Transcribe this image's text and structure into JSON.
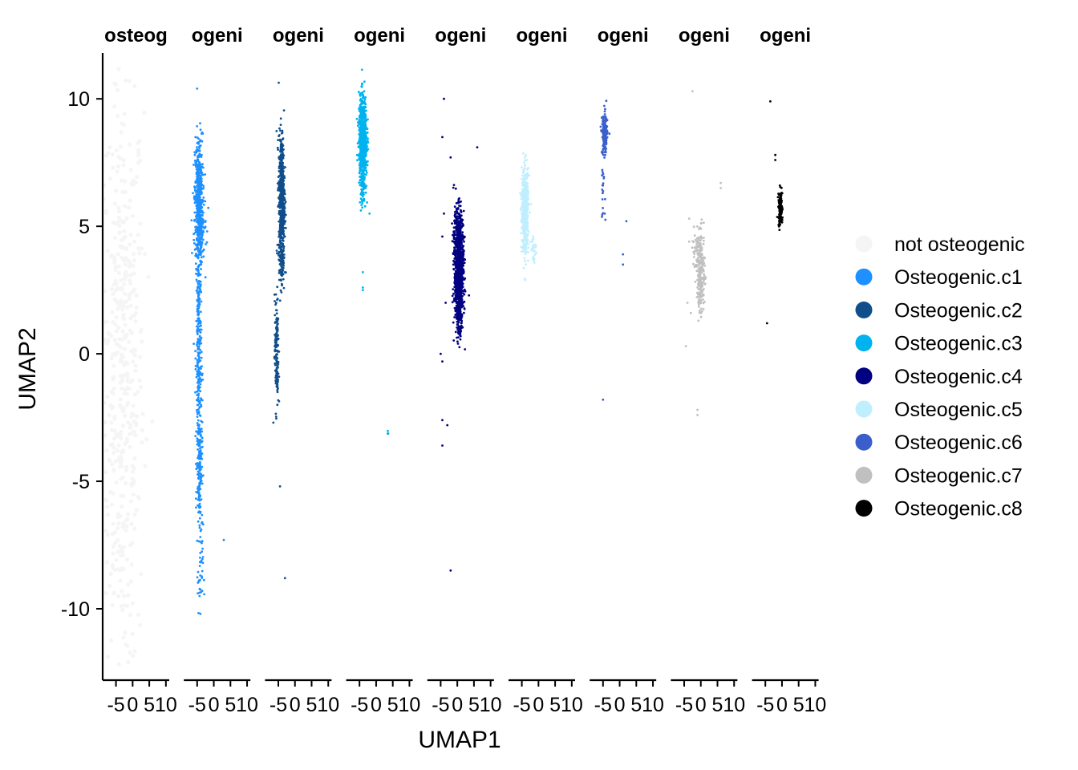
{
  "chart_data": {
    "type": "scatter",
    "title": "",
    "xlabel": "UMAP1",
    "ylabel": "UMAP2",
    "ylim": [
      -12.8,
      11.8
    ],
    "xlim": [
      -9,
      11
    ],
    "y_ticks": [
      10,
      5,
      0,
      -5,
      -10
    ],
    "x_ticks": [
      -5,
      0,
      5,
      10
    ],
    "x_tick_labels": [
      "-5",
      "0",
      "5",
      "10"
    ],
    "grid": false,
    "legend_position": "right",
    "panels": [
      {
        "strip_label": "osteog",
        "series": "not osteogenic"
      },
      {
        "strip_label": "ogeni",
        "series": "Osteogenic.c1"
      },
      {
        "strip_label": "ogeni",
        "series": "Osteogenic.c2"
      },
      {
        "strip_label": "ogeni",
        "series": "Osteogenic.c3"
      },
      {
        "strip_label": "ogeni",
        "series": "Osteogenic.c4"
      },
      {
        "strip_label": "ogeni",
        "series": "Osteogenic.c5"
      },
      {
        "strip_label": "ogeni",
        "series": "Osteogenic.c6"
      },
      {
        "strip_label": "ogeni",
        "series": "Osteogenic.c7"
      },
      {
        "strip_label": "ogeni",
        "series": "Osteogenic.c8"
      }
    ],
    "series": [
      {
        "name": "not osteogenic",
        "color": "#F5F5F5",
        "clusters": [
          {
            "x": -3.0,
            "y": -1.0,
            "sx": 3.2,
            "sy": 6.0,
            "n": 500
          }
        ]
      },
      {
        "name": "Osteogenic.c1",
        "color": "#1E90FF",
        "clusters": [
          {
            "x": -4.5,
            "y": 6.0,
            "sx": 0.6,
            "sy": 1.3,
            "n": 450
          },
          {
            "x": -4.0,
            "y": 5.0,
            "sx": 0.9,
            "sy": 0.6,
            "n": 120
          },
          {
            "x": -4.5,
            "y": 0.0,
            "sx": 0.4,
            "sy": 2.5,
            "n": 300
          },
          {
            "x": -4.3,
            "y": -4.5,
            "sx": 0.4,
            "sy": 1.0,
            "n": 150
          },
          {
            "x": -4.0,
            "y": -8.5,
            "sx": 0.4,
            "sy": 0.9,
            "n": 40
          }
        ]
      },
      {
        "name": "Osteogenic.c2",
        "color": "#104E8B",
        "clusters": [
          {
            "x": -4.0,
            "y": 6.0,
            "sx": 0.45,
            "sy": 1.3,
            "n": 600
          },
          {
            "x": -4.0,
            "y": 3.6,
            "sx": 0.3,
            "sy": 0.4,
            "n": 60
          },
          {
            "x": -5.5,
            "y": 0.0,
            "sx": 0.3,
            "sy": 1.1,
            "n": 150
          }
        ]
      },
      {
        "name": "Osteogenic.c3",
        "color": "#00B2EE",
        "clusters": [
          {
            "x": -4.0,
            "y": 8.5,
            "sx": 0.6,
            "sy": 0.8,
            "n": 650
          },
          {
            "x": -4.0,
            "y": 6.8,
            "sx": 0.4,
            "sy": 0.5,
            "n": 80
          },
          {
            "x": 3.5,
            "y": -3.1,
            "sx": 0.1,
            "sy": 0.1,
            "n": 4
          }
        ]
      },
      {
        "name": "Osteogenic.c4",
        "color": "#000080",
        "clusters": [
          {
            "x": 0.5,
            "y": 3.2,
            "sx": 0.7,
            "sy": 1.0,
            "n": 900
          },
          {
            "x": 0.0,
            "y": 4.8,
            "sx": 0.8,
            "sy": 0.6,
            "n": 150
          },
          {
            "x": 0.5,
            "y": 1.6,
            "sx": 0.4,
            "sy": 0.4,
            "n": 80
          }
        ]
      },
      {
        "name": "Osteogenic.c5",
        "color": "#BFEFFF",
        "clusters": [
          {
            "x": -4.0,
            "y": 5.6,
            "sx": 0.5,
            "sy": 0.8,
            "n": 500
          },
          {
            "x": -1.5,
            "y": 4.2,
            "sx": 0.4,
            "sy": 0.3,
            "n": 25
          }
        ]
      },
      {
        "name": "Osteogenic.c6",
        "color": "#3A5FCD",
        "clusters": [
          {
            "x": -4.5,
            "y": 8.6,
            "sx": 0.4,
            "sy": 0.4,
            "n": 180
          },
          {
            "x": -5.0,
            "y": 6.5,
            "sx": 0.3,
            "sy": 0.6,
            "n": 20
          }
        ]
      },
      {
        "name": "Osteogenic.c7",
        "color": "#C0C0C0",
        "clusters": [
          {
            "x": 0.0,
            "y": 3.2,
            "sx": 0.6,
            "sy": 0.8,
            "n": 220
          },
          {
            "x": -1.5,
            "y": 4.0,
            "sx": 0.5,
            "sy": 0.4,
            "n": 30
          }
        ]
      },
      {
        "name": "Osteogenic.c8",
        "color": "#000000",
        "clusters": [
          {
            "x": -0.5,
            "y": 5.7,
            "sx": 0.3,
            "sy": 0.35,
            "n": 130
          }
        ]
      }
    ]
  },
  "outliers": {
    "Osteogenic.c1": [
      [
        -5,
        10.4
      ],
      [
        -4,
        -10.2
      ],
      [
        3,
        -7.3
      ],
      [
        -2,
        4.8
      ],
      [
        -2.5,
        3.0
      ]
    ],
    "Osteogenic.c2": [
      [
        -6.5,
        -2.7
      ],
      [
        -4.5,
        -5.2
      ],
      [
        -3,
        -8.8
      ],
      [
        -4.5,
        3.2
      ]
    ],
    "Osteogenic.c3": [
      [
        -4,
        2.5
      ],
      [
        -4,
        3.2
      ],
      [
        -2,
        5.5
      ],
      [
        -4,
        2.6
      ]
    ],
    "Osteogenic.c4": [
      [
        -4,
        10.0
      ],
      [
        -4.5,
        8.5
      ],
      [
        -2,
        7.7
      ],
      [
        6,
        8.1
      ],
      [
        -4,
        5.5
      ],
      [
        -4.5,
        4.6
      ],
      [
        -5,
        0.0
      ],
      [
        -4.5,
        -2.6
      ],
      [
        -3,
        -2.8
      ],
      [
        -4.5,
        -3.6
      ],
      [
        -2,
        -8.5
      ],
      [
        -4.5,
        -0.3
      ],
      [
        -3.5,
        2.0
      ]
    ],
    "Osteogenic.c5": [
      [
        -3.5,
        7.6
      ],
      [
        -4.5,
        7.2
      ],
      [
        -1.5,
        3.8
      ]
    ],
    "Osteogenic.c6": [
      [
        -5,
        -1.8
      ],
      [
        2,
        5.2
      ],
      [
        1,
        3.9
      ],
      [
        1,
        3.5
      ],
      [
        -4.5,
        5.5
      ]
    ],
    "Osteogenic.c7": [
      [
        -2.5,
        10.3
      ],
      [
        6,
        6.7
      ],
      [
        6,
        6.5
      ],
      [
        -3.5,
        5.3
      ],
      [
        -3.5,
        4.4
      ],
      [
        -4,
        2.0
      ],
      [
        -4.5,
        0.3
      ],
      [
        -1,
        -2.2
      ],
      [
        -1,
        -2.4
      ],
      [
        -3,
        1.6
      ]
    ],
    "Osteogenic.c8": [
      [
        -3.5,
        9.9
      ],
      [
        -2,
        7.8
      ],
      [
        -2,
        7.6
      ],
      [
        -4.5,
        1.2
      ]
    ]
  }
}
